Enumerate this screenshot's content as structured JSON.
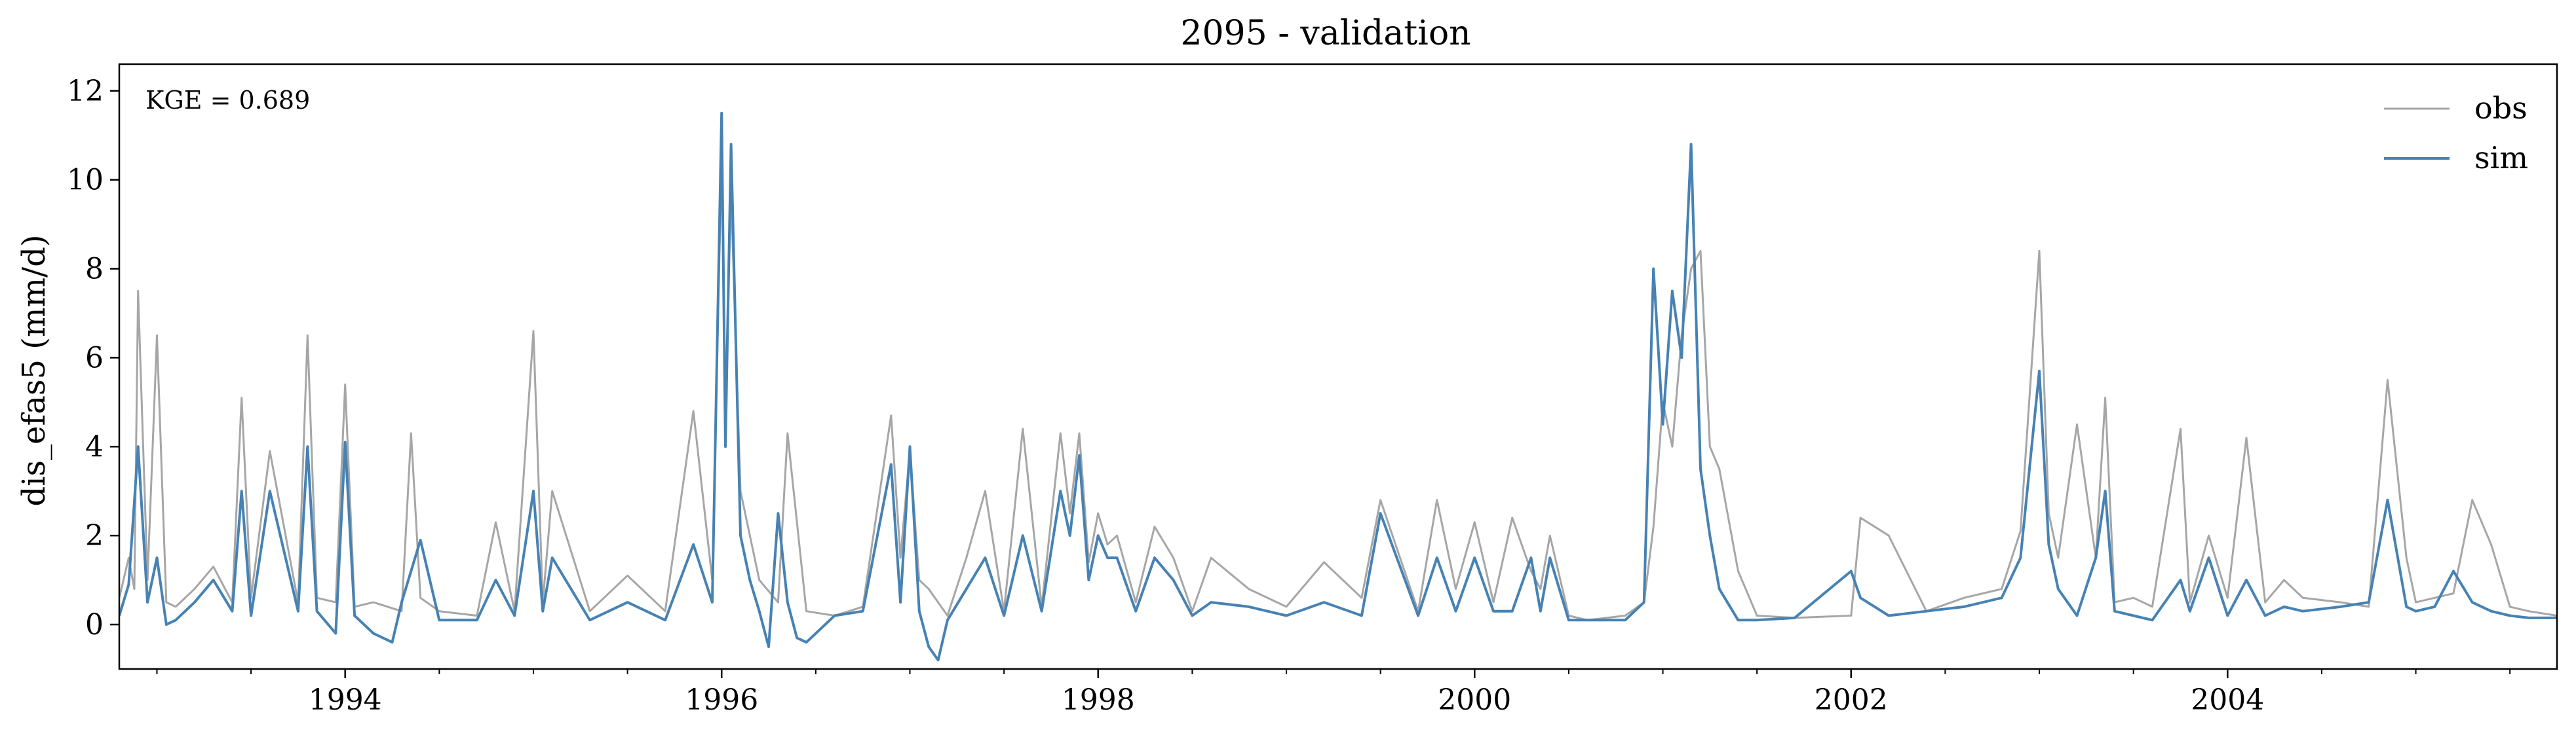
{
  "chart_data": {
    "type": "line",
    "title": "2095 - validation",
    "ylabel": "dis_efas5 (mm/d)",
    "xlabel": "",
    "annotation": "KGE = 0.689",
    "xlim": [
      1992.8,
      2005.75
    ],
    "ylim": [
      -1,
      12.6
    ],
    "x_ticks": [
      1994,
      1996,
      1998,
      2000,
      2002,
      2004
    ],
    "x_tick_labels": [
      "1994",
      "1996",
      "1998",
      "2000",
      "2002",
      "2004"
    ],
    "y_ticks": [
      0,
      2,
      4,
      6,
      8,
      10,
      12
    ],
    "y_tick_labels": [
      "0",
      "2",
      "4",
      "6",
      "8",
      "10",
      "12"
    ],
    "legend_position": "top-right",
    "grid": false,
    "series": [
      {
        "name": "obs",
        "color": "#a6a6a6",
        "x": [
          1992.8,
          1992.85,
          1992.88,
          1992.9,
          1992.95,
          1993.0,
          1993.05,
          1993.1,
          1993.2,
          1993.3,
          1993.4,
          1993.45,
          1993.5,
          1993.6,
          1993.75,
          1993.8,
          1993.85,
          1993.95,
          1994.0,
          1994.05,
          1994.15,
          1994.3,
          1994.35,
          1994.4,
          1994.5,
          1994.7,
          1994.8,
          1994.9,
          1995.0,
          1995.05,
          1995.1,
          1995.3,
          1995.5,
          1995.7,
          1995.85,
          1995.95,
          1996.0,
          1996.02,
          1996.05,
          1996.1,
          1996.15,
          1996.2,
          1996.3,
          1996.35,
          1996.45,
          1996.6,
          1996.75,
          1996.9,
          1996.95,
          1997.0,
          1997.05,
          1997.1,
          1997.2,
          1997.3,
          1997.4,
          1997.5,
          1997.6,
          1997.7,
          1997.8,
          1997.85,
          1997.9,
          1997.95,
          1998.0,
          1998.05,
          1998.1,
          1998.2,
          1998.3,
          1998.4,
          1998.5,
          1998.6,
          1998.8,
          1999.0,
          1999.2,
          1999.4,
          1999.5,
          1999.7,
          1999.8,
          1999.9,
          2000.0,
          2000.1,
          2000.2,
          2000.3,
          2000.35,
          2000.4,
          2000.5,
          2000.6,
          2000.8,
          2000.9,
          2000.95,
          2001.0,
          2001.05,
          2001.1,
          2001.15,
          2001.2,
          2001.25,
          2001.3,
          2001.4,
          2001.5,
          2001.7,
          2002.0,
          2002.05,
          2002.2,
          2002.4,
          2002.6,
          2002.8,
          2002.9,
          2003.0,
          2003.05,
          2003.1,
          2003.2,
          2003.3,
          2003.35,
          2003.4,
          2003.5,
          2003.6,
          2003.75,
          2003.8,
          2003.9,
          2004.0,
          2004.1,
          2004.2,
          2004.3,
          2004.4,
          2004.6,
          2004.75,
          2004.85,
          2004.95,
          2005.0,
          2005.1,
          2005.2,
          2005.3,
          2005.4,
          2005.5,
          2005.6,
          2005.75
        ],
        "values": [
          0.6,
          1.5,
          0.8,
          7.5,
          1.0,
          6.5,
          0.5,
          0.4,
          0.8,
          1.3,
          0.5,
          5.1,
          0.6,
          3.9,
          0.5,
          6.5,
          0.6,
          0.5,
          5.4,
          0.4,
          0.5,
          0.3,
          4.3,
          0.6,
          0.3,
          0.2,
          2.3,
          0.3,
          6.6,
          0.5,
          3.0,
          0.3,
          1.1,
          0.3,
          4.8,
          1.0,
          10.5,
          5.0,
          9.7,
          3.0,
          2.0,
          1.0,
          0.5,
          4.3,
          0.3,
          0.2,
          0.4,
          4.7,
          1.5,
          3.9,
          1.0,
          0.8,
          0.2,
          1.5,
          3.0,
          0.3,
          4.4,
          0.4,
          4.3,
          2.5,
          4.3,
          1.4,
          2.5,
          1.8,
          2.0,
          0.5,
          2.2,
          1.5,
          0.3,
          1.5,
          0.8,
          0.4,
          1.4,
          0.6,
          2.8,
          0.3,
          2.8,
          0.8,
          2.3,
          0.5,
          2.4,
          1.2,
          0.8,
          2.0,
          0.2,
          0.1,
          0.2,
          0.5,
          2.2,
          5.0,
          4.0,
          6.5,
          8.0,
          8.4,
          4.0,
          3.5,
          1.2,
          0.2,
          0.15,
          0.2,
          2.4,
          2.0,
          0.3,
          0.6,
          0.8,
          2.1,
          8.4,
          2.5,
          1.5,
          4.5,
          1.5,
          5.1,
          0.5,
          0.6,
          0.4,
          4.4,
          0.5,
          2.0,
          0.6,
          4.2,
          0.5,
          1.0,
          0.6,
          0.5,
          0.4,
          5.5,
          1.5,
          0.5,
          0.6,
          0.7,
          2.8,
          1.8,
          0.4,
          0.3,
          0.2
        ]
      },
      {
        "name": "sim",
        "color": "#4682b4",
        "x": [
          1992.8,
          1992.85,
          1992.9,
          1992.95,
          1993.0,
          1993.05,
          1993.1,
          1993.2,
          1993.3,
          1993.4,
          1993.45,
          1993.5,
          1993.6,
          1993.75,
          1993.8,
          1993.85,
          1993.95,
          1994.0,
          1994.05,
          1994.15,
          1994.25,
          1994.3,
          1994.4,
          1994.5,
          1994.7,
          1994.8,
          1994.9,
          1995.0,
          1995.05,
          1995.1,
          1995.3,
          1995.5,
          1995.7,
          1995.85,
          1995.95,
          1996.0,
          1996.02,
          1996.05,
          1996.1,
          1996.15,
          1996.2,
          1996.25,
          1996.3,
          1996.35,
          1996.4,
          1996.45,
          1996.6,
          1996.75,
          1996.9,
          1996.95,
          1997.0,
          1997.05,
          1997.1,
          1997.15,
          1997.2,
          1997.3,
          1997.4,
          1997.5,
          1997.6,
          1997.7,
          1997.8,
          1997.85,
          1997.9,
          1997.95,
          1998.0,
          1998.05,
          1998.1,
          1998.2,
          1998.3,
          1998.4,
          1998.5,
          1998.6,
          1998.8,
          1999.0,
          1999.2,
          1999.4,
          1999.5,
          1999.7,
          1999.8,
          1999.9,
          2000.0,
          2000.1,
          2000.2,
          2000.3,
          2000.35,
          2000.4,
          2000.5,
          2000.6,
          2000.8,
          2000.9,
          2000.95,
          2001.0,
          2001.05,
          2001.1,
          2001.15,
          2001.2,
          2001.25,
          2001.3,
          2001.4,
          2001.5,
          2001.7,
          2002.0,
          2002.05,
          2002.2,
          2002.4,
          2002.6,
          2002.8,
          2002.9,
          2003.0,
          2003.05,
          2003.1,
          2003.2,
          2003.3,
          2003.35,
          2003.4,
          2003.5,
          2003.6,
          2003.75,
          2003.8,
          2003.9,
          2004.0,
          2004.1,
          2004.2,
          2004.3,
          2004.4,
          2004.6,
          2004.75,
          2004.85,
          2004.95,
          2005.0,
          2005.1,
          2005.2,
          2005.3,
          2005.4,
          2005.5,
          2005.6,
          2005.75
        ],
        "values": [
          0.2,
          0.9,
          4.0,
          0.5,
          1.5,
          0.0,
          0.1,
          0.5,
          1.0,
          0.3,
          3.0,
          0.2,
          3.0,
          0.3,
          4.0,
          0.3,
          -0.2,
          4.1,
          0.2,
          -0.2,
          -0.4,
          0.5,
          1.9,
          0.1,
          0.1,
          1.0,
          0.2,
          3.0,
          0.3,
          1.5,
          0.1,
          0.5,
          0.1,
          1.8,
          0.5,
          11.5,
          4.0,
          10.8,
          2.0,
          1.0,
          0.3,
          -0.5,
          2.5,
          0.5,
          -0.3,
          -0.4,
          0.2,
          0.3,
          3.6,
          0.5,
          4.0,
          0.3,
          -0.5,
          -0.8,
          0.1,
          0.8,
          1.5,
          0.2,
          2.0,
          0.3,
          3.0,
          2.0,
          3.8,
          1.0,
          2.0,
          1.5,
          1.5,
          0.3,
          1.5,
          1.0,
          0.2,
          0.5,
          0.4,
          0.2,
          0.5,
          0.2,
          2.5,
          0.2,
          1.5,
          0.3,
          1.5,
          0.3,
          0.3,
          1.5,
          0.3,
          1.5,
          0.1,
          0.1,
          0.1,
          0.5,
          8.0,
          4.5,
          7.5,
          6.0,
          10.8,
          3.5,
          2.0,
          0.8,
          0.1,
          0.1,
          0.15,
          1.2,
          0.6,
          0.2,
          0.3,
          0.4,
          0.6,
          1.5,
          5.7,
          1.8,
          0.8,
          0.2,
          1.5,
          3.0,
          0.3,
          0.2,
          0.1,
          1.0,
          0.3,
          1.5,
          0.2,
          1.0,
          0.2,
          0.4,
          0.3,
          0.4,
          0.5,
          2.8,
          0.4,
          0.3,
          0.4,
          1.2,
          0.5,
          0.3,
          0.2,
          0.15,
          0.15
        ]
      }
    ]
  }
}
